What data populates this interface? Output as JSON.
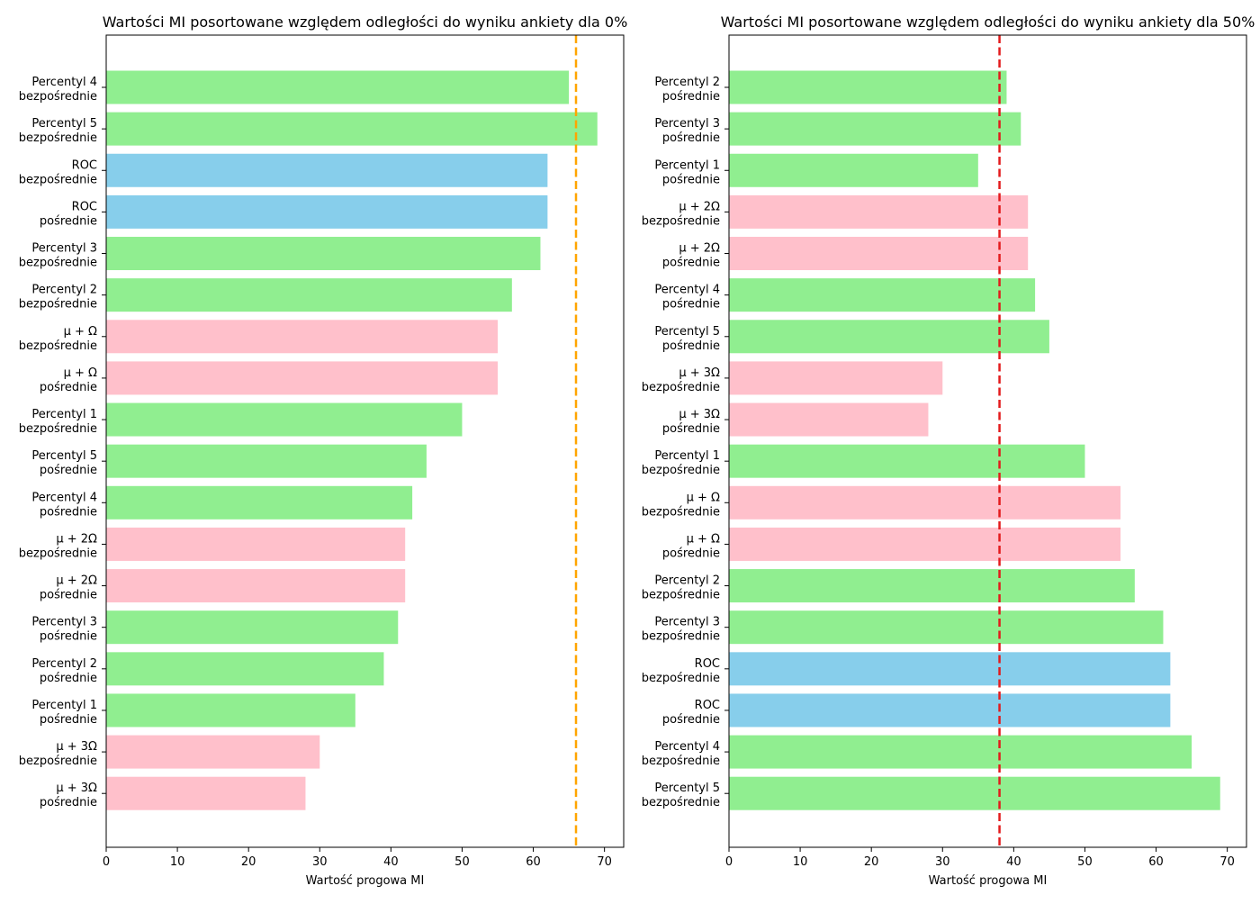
{
  "chart_data": [
    {
      "type": "bar",
      "orientation": "horizontal",
      "title": "Wartości MI posortowane względem odległości do wyniku ankiety dla 0%",
      "xlabel": "Wartość progowa MI",
      "ylabel": "",
      "xlim": [
        0,
        72.7
      ],
      "xticks": [
        "0",
        "10",
        "20",
        "30",
        "40",
        "50",
        "60",
        "70"
      ],
      "reference_line": {
        "value": 66,
        "color": "#ffa500",
        "style": "dashed"
      },
      "categories": [
        [
          "Percentyl 4",
          "bezpośrednie"
        ],
        [
          "Percentyl 5",
          "bezpośrednie"
        ],
        [
          "ROC",
          "bezpośrednie"
        ],
        [
          "ROC",
          "pośrednie"
        ],
        [
          "Percentyl 3",
          "bezpośrednie"
        ],
        [
          "Percentyl 2",
          "bezpośrednie"
        ],
        [
          "µ + Ω",
          "bezpośrednie"
        ],
        [
          "µ + Ω",
          "pośrednie"
        ],
        [
          "Percentyl 1",
          "bezpośrednie"
        ],
        [
          "Percentyl 5",
          "pośrednie"
        ],
        [
          "Percentyl 4",
          "pośrednie"
        ],
        [
          "µ + 2Ω",
          "bezpośrednie"
        ],
        [
          "µ + 2Ω",
          "pośrednie"
        ],
        [
          "Percentyl 3",
          "pośrednie"
        ],
        [
          "Percentyl 2",
          "pośrednie"
        ],
        [
          "Percentyl 1",
          "pośrednie"
        ],
        [
          "µ + 3Ω",
          "bezpośrednie"
        ],
        [
          "µ + 3Ω",
          "pośrednie"
        ]
      ],
      "values": [
        65,
        69,
        62,
        62,
        61,
        57,
        55,
        55,
        50,
        45,
        43,
        42,
        42,
        41,
        39,
        35,
        30,
        28
      ],
      "colors": [
        "#90ee90",
        "#90ee90",
        "#87ceeb",
        "#87ceeb",
        "#90ee90",
        "#90ee90",
        "#ffc0cb",
        "#ffc0cb",
        "#90ee90",
        "#90ee90",
        "#90ee90",
        "#ffc0cb",
        "#ffc0cb",
        "#90ee90",
        "#90ee90",
        "#90ee90",
        "#ffc0cb",
        "#ffc0cb"
      ]
    },
    {
      "type": "bar",
      "orientation": "horizontal",
      "title": "Wartości MI posortowane względem odległości do wyniku ankiety dla 50%",
      "xlabel": "Wartość progowa MI",
      "ylabel": "",
      "xlim": [
        0,
        72.7
      ],
      "xticks": [
        "0",
        "10",
        "20",
        "30",
        "40",
        "50",
        "60",
        "70"
      ],
      "reference_line": {
        "value": 38,
        "color": "#e31a1c",
        "style": "dashed"
      },
      "categories": [
        [
          "Percentyl 2",
          "pośrednie"
        ],
        [
          "Percentyl 3",
          "pośrednie"
        ],
        [
          "Percentyl 1",
          "pośrednie"
        ],
        [
          "µ + 2Ω",
          "bezpośrednie"
        ],
        [
          "µ + 2Ω",
          "pośrednie"
        ],
        [
          "Percentyl 4",
          "pośrednie"
        ],
        [
          "Percentyl 5",
          "pośrednie"
        ],
        [
          "µ + 3Ω",
          "bezpośrednie"
        ],
        [
          "µ + 3Ω",
          "pośrednie"
        ],
        [
          "Percentyl 1",
          "bezpośrednie"
        ],
        [
          "µ + Ω",
          "bezpośrednie"
        ],
        [
          "µ + Ω",
          "pośrednie"
        ],
        [
          "Percentyl 2",
          "bezpośrednie"
        ],
        [
          "Percentyl 3",
          "bezpośrednie"
        ],
        [
          "ROC",
          "bezpośrednie"
        ],
        [
          "ROC",
          "pośrednie"
        ],
        [
          "Percentyl 4",
          "bezpośrednie"
        ],
        [
          "Percentyl 5",
          "bezpośrednie"
        ]
      ],
      "values": [
        39,
        41,
        35,
        42,
        42,
        43,
        45,
        30,
        28,
        50,
        55,
        55,
        57,
        61,
        62,
        62,
        65,
        69
      ],
      "colors": [
        "#90ee90",
        "#90ee90",
        "#90ee90",
        "#ffc0cb",
        "#ffc0cb",
        "#90ee90",
        "#90ee90",
        "#ffc0cb",
        "#ffc0cb",
        "#90ee90",
        "#ffc0cb",
        "#ffc0cb",
        "#90ee90",
        "#90ee90",
        "#87ceeb",
        "#87ceeb",
        "#90ee90",
        "#90ee90"
      ]
    }
  ]
}
